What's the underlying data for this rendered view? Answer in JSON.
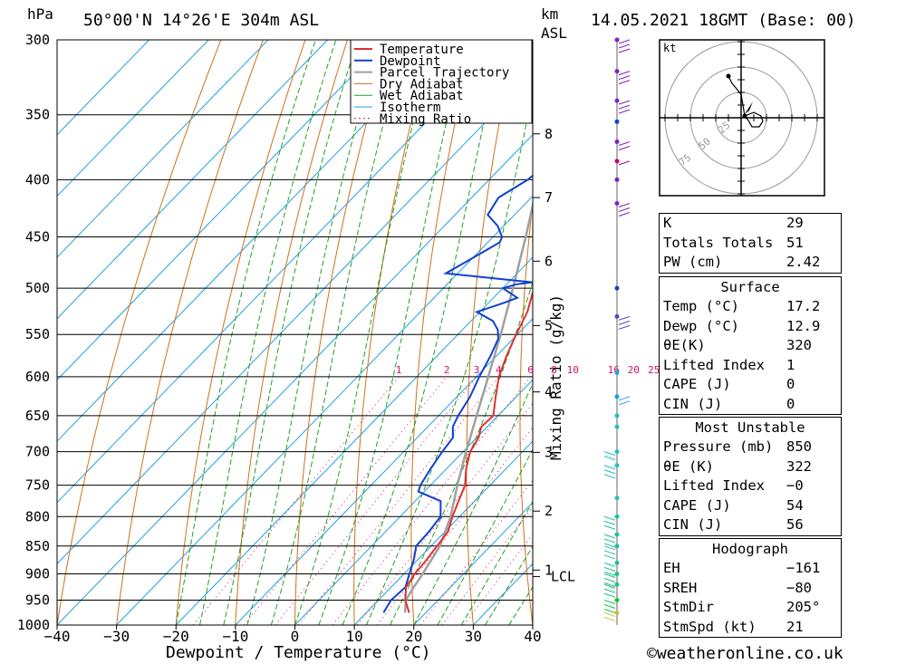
{
  "header": {
    "hpa_label": "hPa",
    "location": "50°00'N  14°26'E  304m  ASL",
    "km_label": "km",
    "asl_label": "ASL",
    "datetime": "14.05.2021  18GMT  (Base: 00)"
  },
  "colors": {
    "temperature": "#e03030",
    "dewpoint": "#1040d0",
    "parcel": "#a0a0a0",
    "dry_adiabat": "#d07018",
    "wet_adiabat": "#20a020",
    "isotherm": "#20a0e0",
    "mixing_ratio": "#d01070"
  },
  "chart_data": {
    "type": "skew-t",
    "xlabel": "Dewpoint / Temperature (°C)",
    "ylabel": "hPa",
    "secondary_ylabel": "Mixing Ratio (g/kg)",
    "xlim": [
      -40,
      40
    ],
    "ylim": [
      1000,
      300
    ],
    "x_ticks": [
      "−40",
      "−30",
      "−20",
      "−10",
      "0",
      "10",
      "20",
      "30",
      "40"
    ],
    "pressure_levels": [
      300,
      350,
      400,
      450,
      500,
      550,
      600,
      650,
      700,
      750,
      800,
      850,
      900,
      950,
      1000
    ],
    "km_ticks": [
      {
        "label": "8",
        "p": 364
      },
      {
        "label": "7",
        "p": 415
      },
      {
        "label": "6",
        "p": 473
      },
      {
        "label": "5",
        "p": 540
      },
      {
        "label": "4",
        "p": 619
      },
      {
        "label": "3",
        "p": 701
      },
      {
        "label": "2",
        "p": 791
      },
      {
        "label": "1",
        "p": 893
      }
    ],
    "lcl": {
      "label": "LCL",
      "p": 905
    },
    "mixing_ratio_labels": [
      "1",
      "2",
      "3",
      "4",
      "6",
      "8",
      "10",
      "16",
      "20",
      "25"
    ],
    "mixing_ratio_values": [
      1,
      2,
      3,
      4,
      6,
      8,
      10,
      16,
      20,
      25
    ],
    "legend": [
      "Temperature",
      "Dewpoint",
      "Parcel Trajectory",
      "Dry Adiabat",
      "Wet Adiabat",
      "Isotherm",
      "Mixing Ratio"
    ],
    "series": [
      {
        "name": "Temperature",
        "points": [
          [
            975,
            17.2
          ],
          [
            950,
            14.5
          ],
          [
            925,
            12.5
          ],
          [
            900,
            11.8
          ],
          [
            875,
            11.5
          ],
          [
            850,
            11.0
          ],
          [
            825,
            10.5
          ],
          [
            800,
            8.8
          ],
          [
            775,
            7.3
          ],
          [
            750,
            5.8
          ],
          [
            725,
            3.3
          ],
          [
            700,
            1.2
          ],
          [
            680,
            0.3
          ],
          [
            665,
            -1.0
          ],
          [
            650,
            -0.8
          ],
          [
            625,
            -3.5
          ],
          [
            600,
            -6.2
          ],
          [
            575,
            -8.3
          ],
          [
            550,
            -10.2
          ],
          [
            525,
            -12.0
          ],
          [
            505,
            -14.2
          ],
          [
            490,
            -15.0
          ],
          [
            480,
            -15.8
          ],
          [
            460,
            -18.3
          ],
          [
            440,
            -21.3
          ],
          [
            420,
            -24.6
          ],
          [
            400,
            -28.0
          ],
          [
            380,
            -31.8
          ],
          [
            360,
            -35.0
          ],
          [
            350,
            -37.0
          ],
          [
            330,
            -40.8
          ],
          [
            300,
            -47.5
          ]
        ]
      },
      {
        "name": "Dewpoint",
        "points": [
          [
            975,
            12.9
          ],
          [
            950,
            12.1
          ],
          [
            925,
            12.4
          ],
          [
            900,
            10.9
          ],
          [
            875,
            9.4
          ],
          [
            850,
            7.5
          ],
          [
            825,
            7.3
          ],
          [
            800,
            6.8
          ],
          [
            775,
            4.3
          ],
          [
            760,
            -1.0
          ],
          [
            750,
            -1.7
          ],
          [
            725,
            -2.7
          ],
          [
            700,
            -3.5
          ],
          [
            680,
            -4.0
          ],
          [
            665,
            -5.8
          ],
          [
            650,
            -6.7
          ],
          [
            625,
            -7.8
          ],
          [
            600,
            -9.5
          ],
          [
            575,
            -11.0
          ],
          [
            555,
            -12.5
          ],
          [
            545,
            -14.0
          ],
          [
            535,
            -16.3
          ],
          [
            525,
            -20.5
          ],
          [
            515,
            -17.3
          ],
          [
            510,
            -16.0
          ],
          [
            500,
            -20.0
          ],
          [
            496,
            -18.3
          ],
          [
            494,
            -16.0
          ],
          [
            485,
            -32.0
          ],
          [
            470,
            -30.0
          ],
          [
            455,
            -28.0
          ],
          [
            450,
            -28.5
          ],
          [
            440,
            -31.0
          ],
          [
            430,
            -34.5
          ],
          [
            415,
            -35.5
          ],
          [
            400,
            -33.5
          ],
          [
            390,
            -33.0
          ],
          [
            380,
            -36.0
          ],
          [
            370,
            -34.0
          ],
          [
            362,
            -33.0
          ],
          [
            353,
            -45.0
          ],
          [
            340,
            -44.0
          ],
          [
            325,
            -46.0
          ],
          [
            310,
            -49.0
          ],
          [
            300,
            -53.0
          ]
        ]
      },
      {
        "name": "Parcel Trajectory",
        "points": [
          [
            975,
            16.5
          ],
          [
            950,
            14.6
          ],
          [
            925,
            13.8
          ],
          [
            905,
            13.3
          ],
          [
            850,
            11.5
          ],
          [
            800,
            8.5
          ],
          [
            750,
            4.5
          ],
          [
            700,
            0.5
          ],
          [
            650,
            -3.6
          ],
          [
            600,
            -8.0
          ],
          [
            550,
            -12.8
          ],
          [
            500,
            -18.3
          ],
          [
            450,
            -24.5
          ],
          [
            400,
            -31.7
          ],
          [
            350,
            -40.0
          ],
          [
            300,
            -50.0
          ]
        ]
      }
    ],
    "hodograph": {
      "unit_label": "kt",
      "ring_labels": [
        "25",
        "50",
        "75"
      ]
    }
  },
  "indices": {
    "k_label": "K",
    "k_value": "29",
    "tt_label": "Totals Totals",
    "tt_value": "51",
    "pw_label": "PW (cm)",
    "pw_value": "2.42"
  },
  "surface": {
    "title": "Surface",
    "temp_label": "Temp (°C)",
    "temp_value": "17.2",
    "dewp_label": "Dewp (°C)",
    "dewp_value": "12.9",
    "theta_label": "θE(K)",
    "theta_value": "320",
    "li_label": "Lifted Index",
    "li_value": "1",
    "cape_label": "CAPE (J)",
    "cape_value": "0",
    "cin_label": "CIN (J)",
    "cin_value": "0"
  },
  "most_unstable": {
    "title": "Most Unstable",
    "pressure_label": "Pressure (mb)",
    "pressure_value": "850",
    "theta_label": "θE (K)",
    "theta_value": "322",
    "li_label": "Lifted Index",
    "li_value": "−0",
    "cape_label": "CAPE (J)",
    "cape_value": "54",
    "cin_label": "CIN (J)",
    "cin_value": "56"
  },
  "hodograph_stats": {
    "title": "Hodograph",
    "eh_label": "EH",
    "eh_value": "−161",
    "sreh_label": "SREH",
    "sreh_value": "−80",
    "stmdir_label": "StmDir",
    "stmdir_value": "205°",
    "stmspd_label": "StmSpd (kt)",
    "stmspd_value": "21"
  },
  "footer": {
    "copyright": "©weatheronline.co.uk"
  }
}
